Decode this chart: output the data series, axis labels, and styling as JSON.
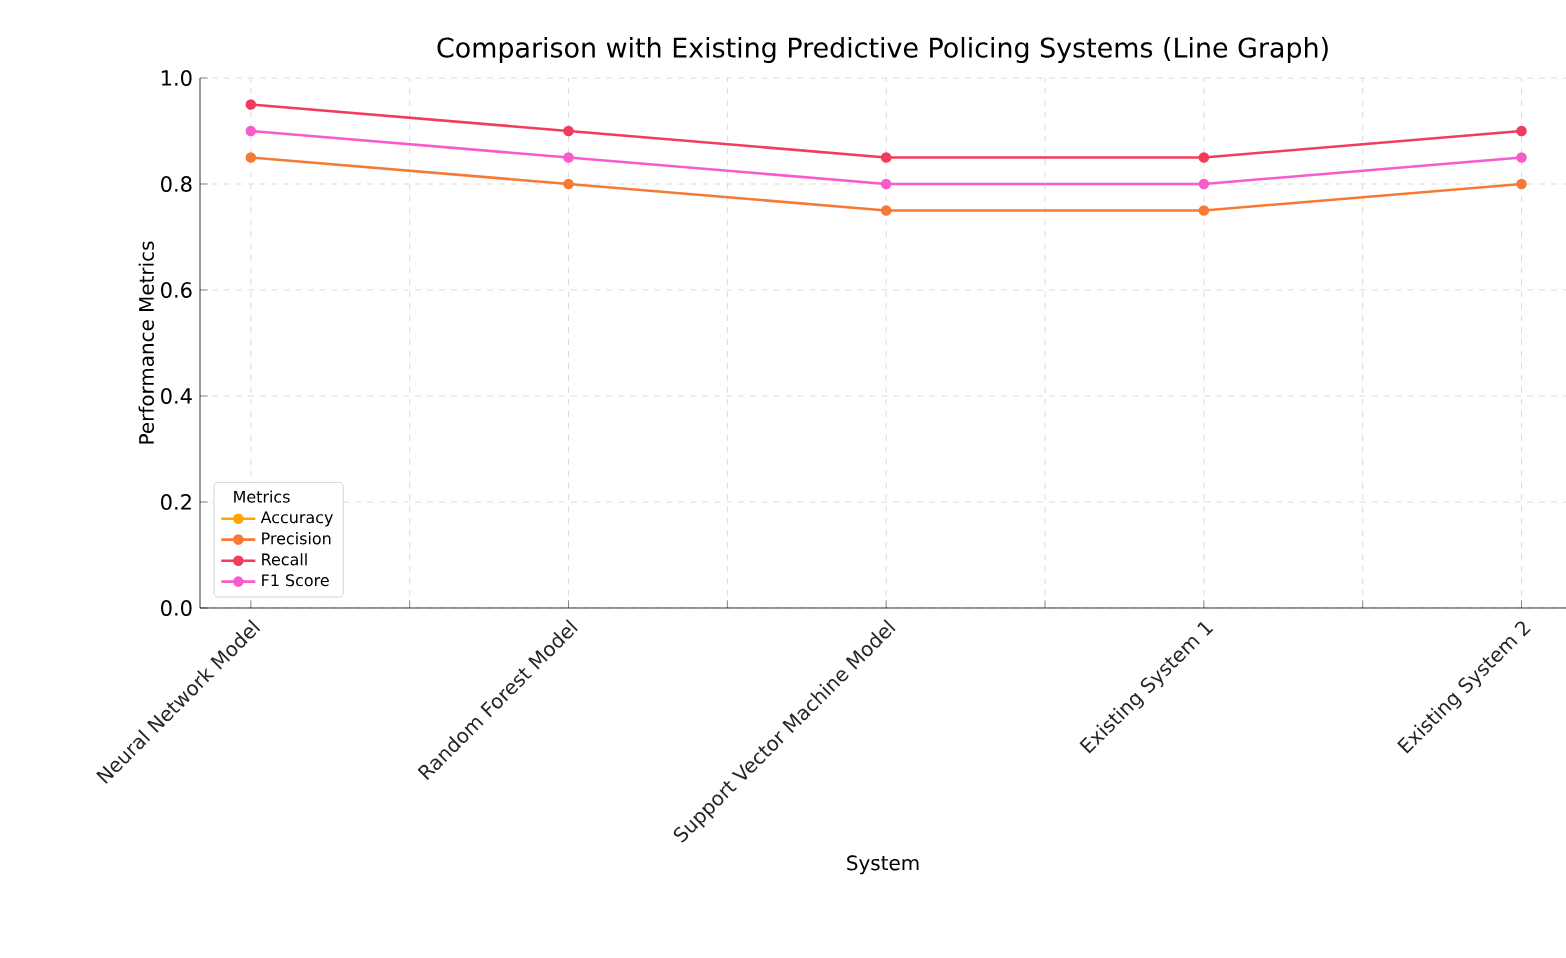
{
  "chart_data": {
    "type": "line",
    "title": "Comparison with Existing Predictive Policing Systems (Line Graph)",
    "xlabel": "System",
    "ylabel": "Performance Metrics",
    "legend_title": "Metrics",
    "categories": [
      "Neural Network Model",
      "Random Forest Model",
      "Support Vector Machine Model",
      "Existing System 1",
      "Existing System 2"
    ],
    "series": [
      {
        "name": "Accuracy",
        "color": "#ffa500",
        "values": [
          null,
          null,
          null,
          null,
          null
        ]
      },
      {
        "name": "Precision",
        "color": "#f67a35",
        "values": [
          0.85,
          0.8,
          0.75,
          0.75,
          0.8
        ]
      },
      {
        "name": "Recall",
        "color": "#f23c5c",
        "values": [
          0.95,
          0.9,
          0.85,
          0.85,
          0.9
        ]
      },
      {
        "name": "F1 Score",
        "color": "#f75ccc",
        "values": [
          0.9,
          0.85,
          0.8,
          0.8,
          0.85
        ]
      }
    ],
    "ylim": [
      0,
      1
    ],
    "yticks": [
      {
        "value": 0,
        "label": "0.0"
      },
      {
        "value": 0.2,
        "label": "0.2"
      },
      {
        "value": 0.4,
        "label": "0.4"
      },
      {
        "value": 0.6,
        "label": "0.6"
      },
      {
        "value": 0.8,
        "label": "0.8"
      },
      {
        "value": 1,
        "label": "1.0"
      }
    ],
    "grid": true,
    "legend": "bottom left",
    "marker": "circle",
    "line_style": "solid"
  }
}
